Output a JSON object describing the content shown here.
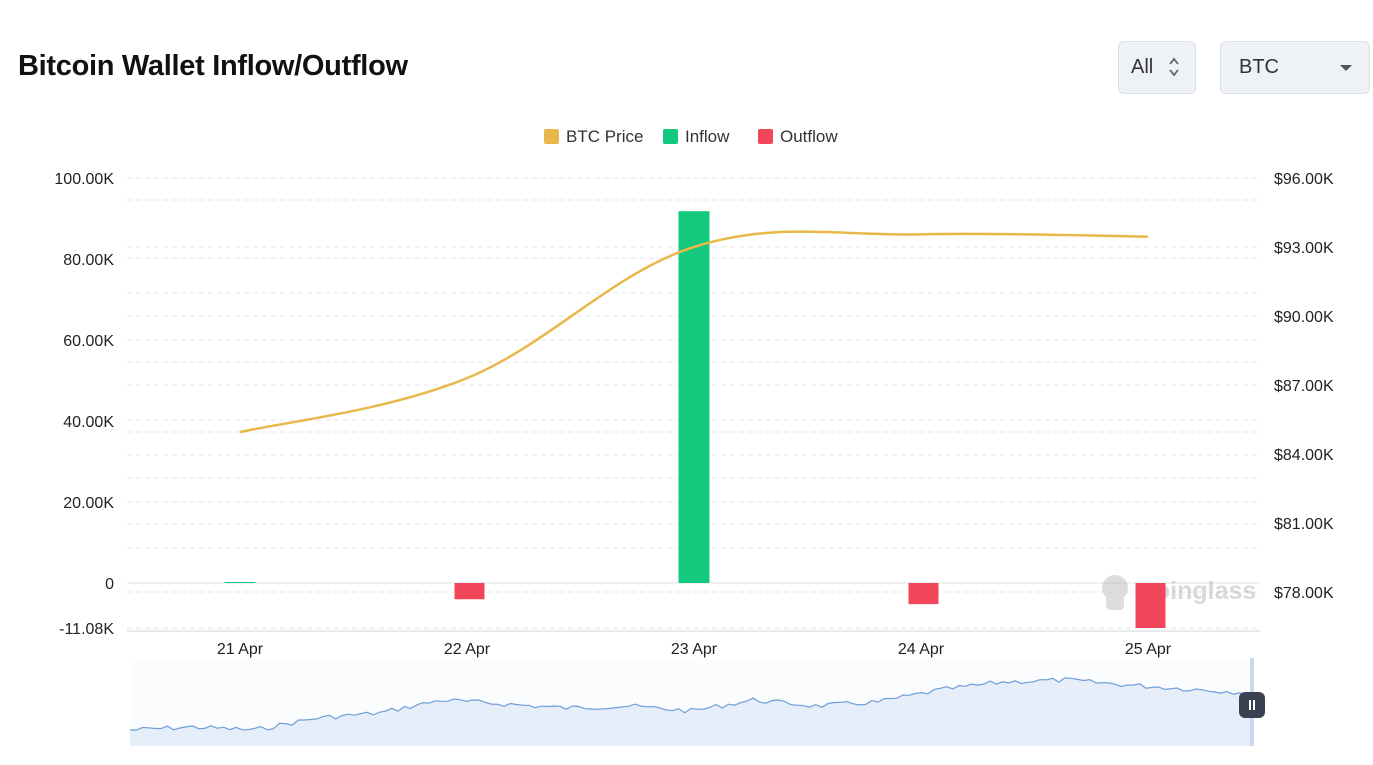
{
  "header": {
    "title": "Bitcoin Wallet Inflow/Outflow",
    "range_label": "All",
    "asset_label": "BTC"
  },
  "icons": {
    "range": "up-down-arrows-icon",
    "asset": "caret-down-icon",
    "zoom": "pause-icon",
    "logo": "coinglass-logo-icon"
  },
  "watermark": "coinglass",
  "colors": {
    "price": "#e8b94a",
    "inflow": "#12c97e",
    "outflow": "#f2465b",
    "navigator_line": "#6f9ed8",
    "navigator_fill": "#e6eefa"
  },
  "chart_data": {
    "type": "bar",
    "legend": [
      "BTC Price",
      "Inflow",
      "Outflow"
    ],
    "legend_position": "top-center",
    "categories": [
      "21 Apr",
      "22 Apr",
      "23 Apr",
      "24 Apr",
      "25 Apr"
    ],
    "series": [
      {
        "name": "Inflow",
        "type": "bar",
        "values": [
          100,
          0,
          91800,
          0,
          0
        ]
      },
      {
        "name": "Outflow",
        "type": "bar",
        "values": [
          0,
          -4000,
          0,
          -5200,
          -11080
        ]
      },
      {
        "name": "BTC Price",
        "type": "line",
        "axis": "right",
        "values": [
          84950,
          87300,
          93000,
          93550,
          93450
        ]
      }
    ],
    "left_axis": {
      "ticks": [
        "100.00K",
        "80.00K",
        "60.00K",
        "40.00K",
        "20.00K",
        "0",
        "-11.08K"
      ],
      "range": [
        -11080,
        100000
      ]
    },
    "right_axis": {
      "ticks": [
        "$96.00K",
        "$93.00K",
        "$90.00K",
        "$87.00K",
        "$84.00K",
        "$81.00K",
        "$78.00K"
      ],
      "range": [
        76600,
        96000
      ]
    },
    "grid": true
  }
}
